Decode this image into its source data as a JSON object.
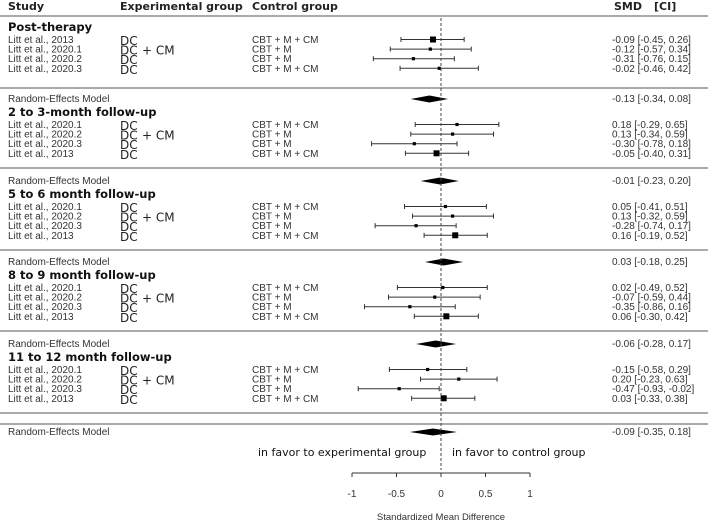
{
  "header": {
    "study": "Study",
    "experimental": "Experimental group",
    "control": "Control group",
    "smd": "SMD",
    "ci": "[CI]"
  },
  "favor_left": "in favor to experimental group",
  "favor_right": "in favor to control group",
  "chart_data": {
    "type": "forest",
    "xlabel": "Standardized Mean Difference",
    "xlim": [
      -1,
      1
    ],
    "xticks": [
      -1,
      -0.5,
      0,
      0.5,
      1
    ],
    "xtick_labels": [
      "-1",
      "-0.5",
      "0",
      "0.5",
      "1"
    ],
    "groups": [
      {
        "title": "Post-therapy",
        "studies": [
          {
            "study": "Litt et al., 2013",
            "control": "CBT + M + CM",
            "smd": -0.09,
            "lo": -0.45,
            "hi": 0.26,
            "label": "-0.09 [-0.45, 0.26]",
            "weight": 1.5
          },
          {
            "study": "Litt et al., 2020.1",
            "control": "CBT + M",
            "smd": -0.12,
            "lo": -0.57,
            "hi": 0.34,
            "label": "-0.12 [-0.57, 0.34]",
            "weight": 0.8
          },
          {
            "study": "Litt et al., 2020.2",
            "control": "CBT + M",
            "smd": -0.31,
            "lo": -0.76,
            "hi": 0.15,
            "label": "-0.31 [-0.76, 0.15]",
            "weight": 0.8
          },
          {
            "study": "Litt et al., 2020.3",
            "control": "CBT + M + CM",
            "smd": -0.02,
            "lo": -0.46,
            "hi": 0.42,
            "label": "-0.02 [-0.46, 0.42]",
            "weight": 0.8
          }
        ],
        "pooled": {
          "label_text": "Random-Effects Model",
          "smd": -0.13,
          "lo": -0.34,
          "hi": 0.08,
          "label": "-0.13 [-0.34, 0.08]"
        }
      },
      {
        "title": "2 to 3-month follow-up",
        "studies": [
          {
            "study": "Litt et al., 2020.1",
            "control": "CBT + M + CM",
            "smd": 0.18,
            "lo": -0.29,
            "hi": 0.65,
            "label": "0.18 [-0.29, 0.65]",
            "weight": 0.8
          },
          {
            "study": "Litt et al., 2020.2",
            "control": "CBT + M",
            "smd": 0.13,
            "lo": -0.34,
            "hi": 0.59,
            "label": "0.13 [-0.34, 0.59]",
            "weight": 0.8
          },
          {
            "study": "Litt et al., 2020.3",
            "control": "CBT + M",
            "smd": -0.3,
            "lo": -0.78,
            "hi": 0.18,
            "label": "-0.30 [-0.78, 0.18]",
            "weight": 0.8
          },
          {
            "study": "Litt et al., 2013",
            "control": "CBT + M + CM",
            "smd": -0.05,
            "lo": -0.4,
            "hi": 0.31,
            "label": "-0.05 [-0.40, 0.31]",
            "weight": 1.5
          }
        ],
        "pooled": {
          "label_text": "Random-Effects Model",
          "smd": -0.01,
          "lo": -0.23,
          "hi": 0.2,
          "label": "-0.01 [-0.23, 0.20]"
        }
      },
      {
        "title": "5 to 6 month follow-up",
        "studies": [
          {
            "study": "Litt et al., 2020.1",
            "control": "CBT + M + CM",
            "smd": 0.05,
            "lo": -0.41,
            "hi": 0.51,
            "label": "0.05 [-0.41, 0.51]",
            "weight": 0.8
          },
          {
            "study": "Litt et al., 2020.2",
            "control": "CBT + M",
            "smd": 0.13,
            "lo": -0.32,
            "hi": 0.59,
            "label": "0.13 [-0.32, 0.59]",
            "weight": 0.8
          },
          {
            "study": "Litt et al., 2020.3",
            "control": "CBT + M",
            "smd": -0.28,
            "lo": -0.74,
            "hi": 0.17,
            "label": "-0.28 [-0.74, 0.17]",
            "weight": 0.8
          },
          {
            "study": "Litt et al., 2013",
            "control": "CBT + M + CM",
            "smd": 0.16,
            "lo": -0.19,
            "hi": 0.52,
            "label": "0.16 [-0.19, 0.52]",
            "weight": 1.5
          }
        ],
        "pooled": {
          "label_text": "Random-Effects Model",
          "smd": 0.03,
          "lo": -0.18,
          "hi": 0.25,
          "label": "0.03 [-0.18, 0.25]"
        }
      },
      {
        "title": "8 to 9 month follow-up",
        "studies": [
          {
            "study": "Litt et al., 2020.1",
            "control": "CBT + M + CM",
            "smd": 0.02,
            "lo": -0.49,
            "hi": 0.52,
            "label": "0.02 [-0.49, 0.52]",
            "weight": 0.8
          },
          {
            "study": "Litt et al., 2020.2",
            "control": "CBT + M",
            "smd": -0.07,
            "lo": -0.59,
            "hi": 0.44,
            "label": "-0.07 [-0.59, 0.44]",
            "weight": 0.8
          },
          {
            "study": "Litt et al., 2020.3",
            "control": "CBT + M",
            "smd": -0.35,
            "lo": -0.86,
            "hi": 0.16,
            "label": "-0.35 [-0.86, 0.16]",
            "weight": 0.8
          },
          {
            "study": "Litt et al., 2013",
            "control": "CBT + M + CM",
            "smd": 0.06,
            "lo": -0.3,
            "hi": 0.42,
            "label": "0.06 [-0.30, 0.42]",
            "weight": 1.5
          }
        ],
        "pooled": {
          "label_text": "Random-Effects Model",
          "smd": -0.06,
          "lo": -0.28,
          "hi": 0.17,
          "label": "-0.06 [-0.28, 0.17]"
        }
      },
      {
        "title": "11 to 12 month  follow-up",
        "studies": [
          {
            "study": "Litt et al., 2020.1",
            "control": "CBT + M + CM",
            "smd": -0.15,
            "lo": -0.58,
            "hi": 0.29,
            "label": "-0.15 [-0.58, 0.29]",
            "weight": 0.8
          },
          {
            "study": "Litt et al., 2020.2",
            "control": "CBT + M",
            "smd": 0.2,
            "lo": -0.23,
            "hi": 0.63,
            "label": "0.20 [-0.23, 0.63]",
            "weight": 0.8
          },
          {
            "study": "Litt et al., 2020.3",
            "control": "CBT + M",
            "smd": -0.47,
            "lo": -0.93,
            "hi": -0.02,
            "label": "-0.47 [-0.93, -0.02]",
            "weight": 0.8
          },
          {
            "study": "Litt et al., 2013",
            "control": "CBT + M + CM",
            "smd": 0.03,
            "lo": -0.33,
            "hi": 0.38,
            "label": "0.03 [-0.33, 0.38]",
            "weight": 1.5
          }
        ],
        "pooled": null
      }
    ],
    "overall": {
      "label_text": "Random-Effects Model",
      "smd": -0.09,
      "lo": -0.35,
      "hi": 0.18,
      "label": "-0.09 [-0.35,  0.18]"
    },
    "experimental_labels": {
      "dc": "DC",
      "plus_cm": "+ CM"
    }
  }
}
